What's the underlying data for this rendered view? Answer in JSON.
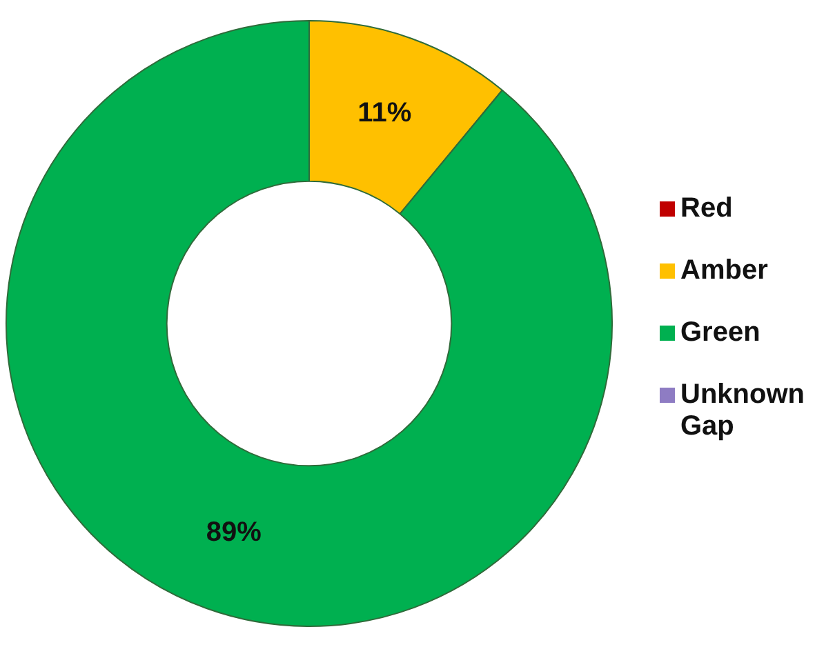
{
  "chart_data": {
    "type": "donut",
    "categories": [
      "Red",
      "Amber",
      "Green",
      "Unknown Gap"
    ],
    "values": [
      0,
      11,
      89,
      0
    ],
    "colors": [
      "#c00000",
      "#ffc000",
      "#00b050",
      "#8e7cc3"
    ],
    "value_labels": [
      null,
      "11%",
      "89%",
      null
    ],
    "legend": "right"
  }
}
